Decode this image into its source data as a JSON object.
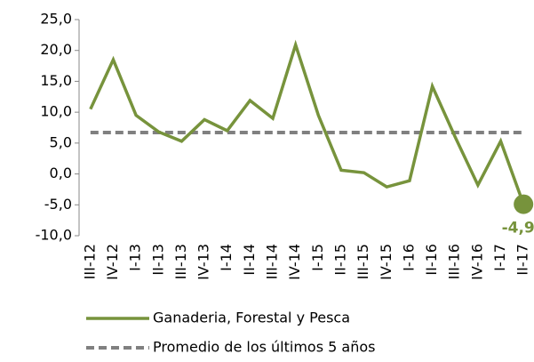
{
  "chart_data": {
    "type": "line",
    "categories": [
      "III-12",
      "IV-12",
      "I-13",
      "II-13",
      "III-13",
      "IV-13",
      "I-14",
      "II-14",
      "III-14",
      "IV-14",
      "I-15",
      "II-15",
      "III-15",
      "IV-15",
      "I-16",
      "II-16",
      "III-16",
      "IV-16",
      "I-17",
      "II-17"
    ],
    "series": [
      {
        "name": "Ganaderia, Forestal y Pesca",
        "color": "#77933c",
        "values": [
          10.5,
          18.5,
          9.5,
          6.8,
          5.3,
          8.8,
          7.0,
          11.9,
          9.0,
          20.9,
          9.5,
          0.6,
          0.2,
          -2.1,
          -1.1,
          14.2,
          6.0,
          -1.8,
          5.3,
          -4.9
        ],
        "value_labels": [
          null,
          null,
          null,
          null,
          null,
          null,
          null,
          null,
          null,
          null,
          null,
          null,
          null,
          null,
          null,
          null,
          null,
          null,
          null,
          "-4,9"
        ]
      },
      {
        "name": "Promedio de los últimos 5 años",
        "color": "#808080",
        "dashed": true,
        "values": [
          6.7,
          6.7,
          6.7,
          6.7,
          6.7,
          6.7,
          6.7,
          6.7,
          6.7,
          6.7,
          6.7,
          6.7,
          6.7,
          6.7,
          6.7,
          6.7,
          6.7,
          6.7,
          6.7,
          6.7
        ]
      }
    ],
    "ylim": [
      -10,
      25
    ],
    "yticks": [
      {
        "value": -10,
        "label": "-10,0"
      },
      {
        "value": -5,
        "label": "-5,0"
      },
      {
        "value": 0,
        "label": "0,0"
      },
      {
        "value": 5,
        "label": "5,0"
      },
      {
        "value": 10,
        "label": "10,0"
      },
      {
        "value": 15,
        "label": "15,0"
      },
      {
        "value": 20,
        "label": "20,0"
      },
      {
        "value": 25,
        "label": "25,0"
      }
    ],
    "grid": false
  }
}
